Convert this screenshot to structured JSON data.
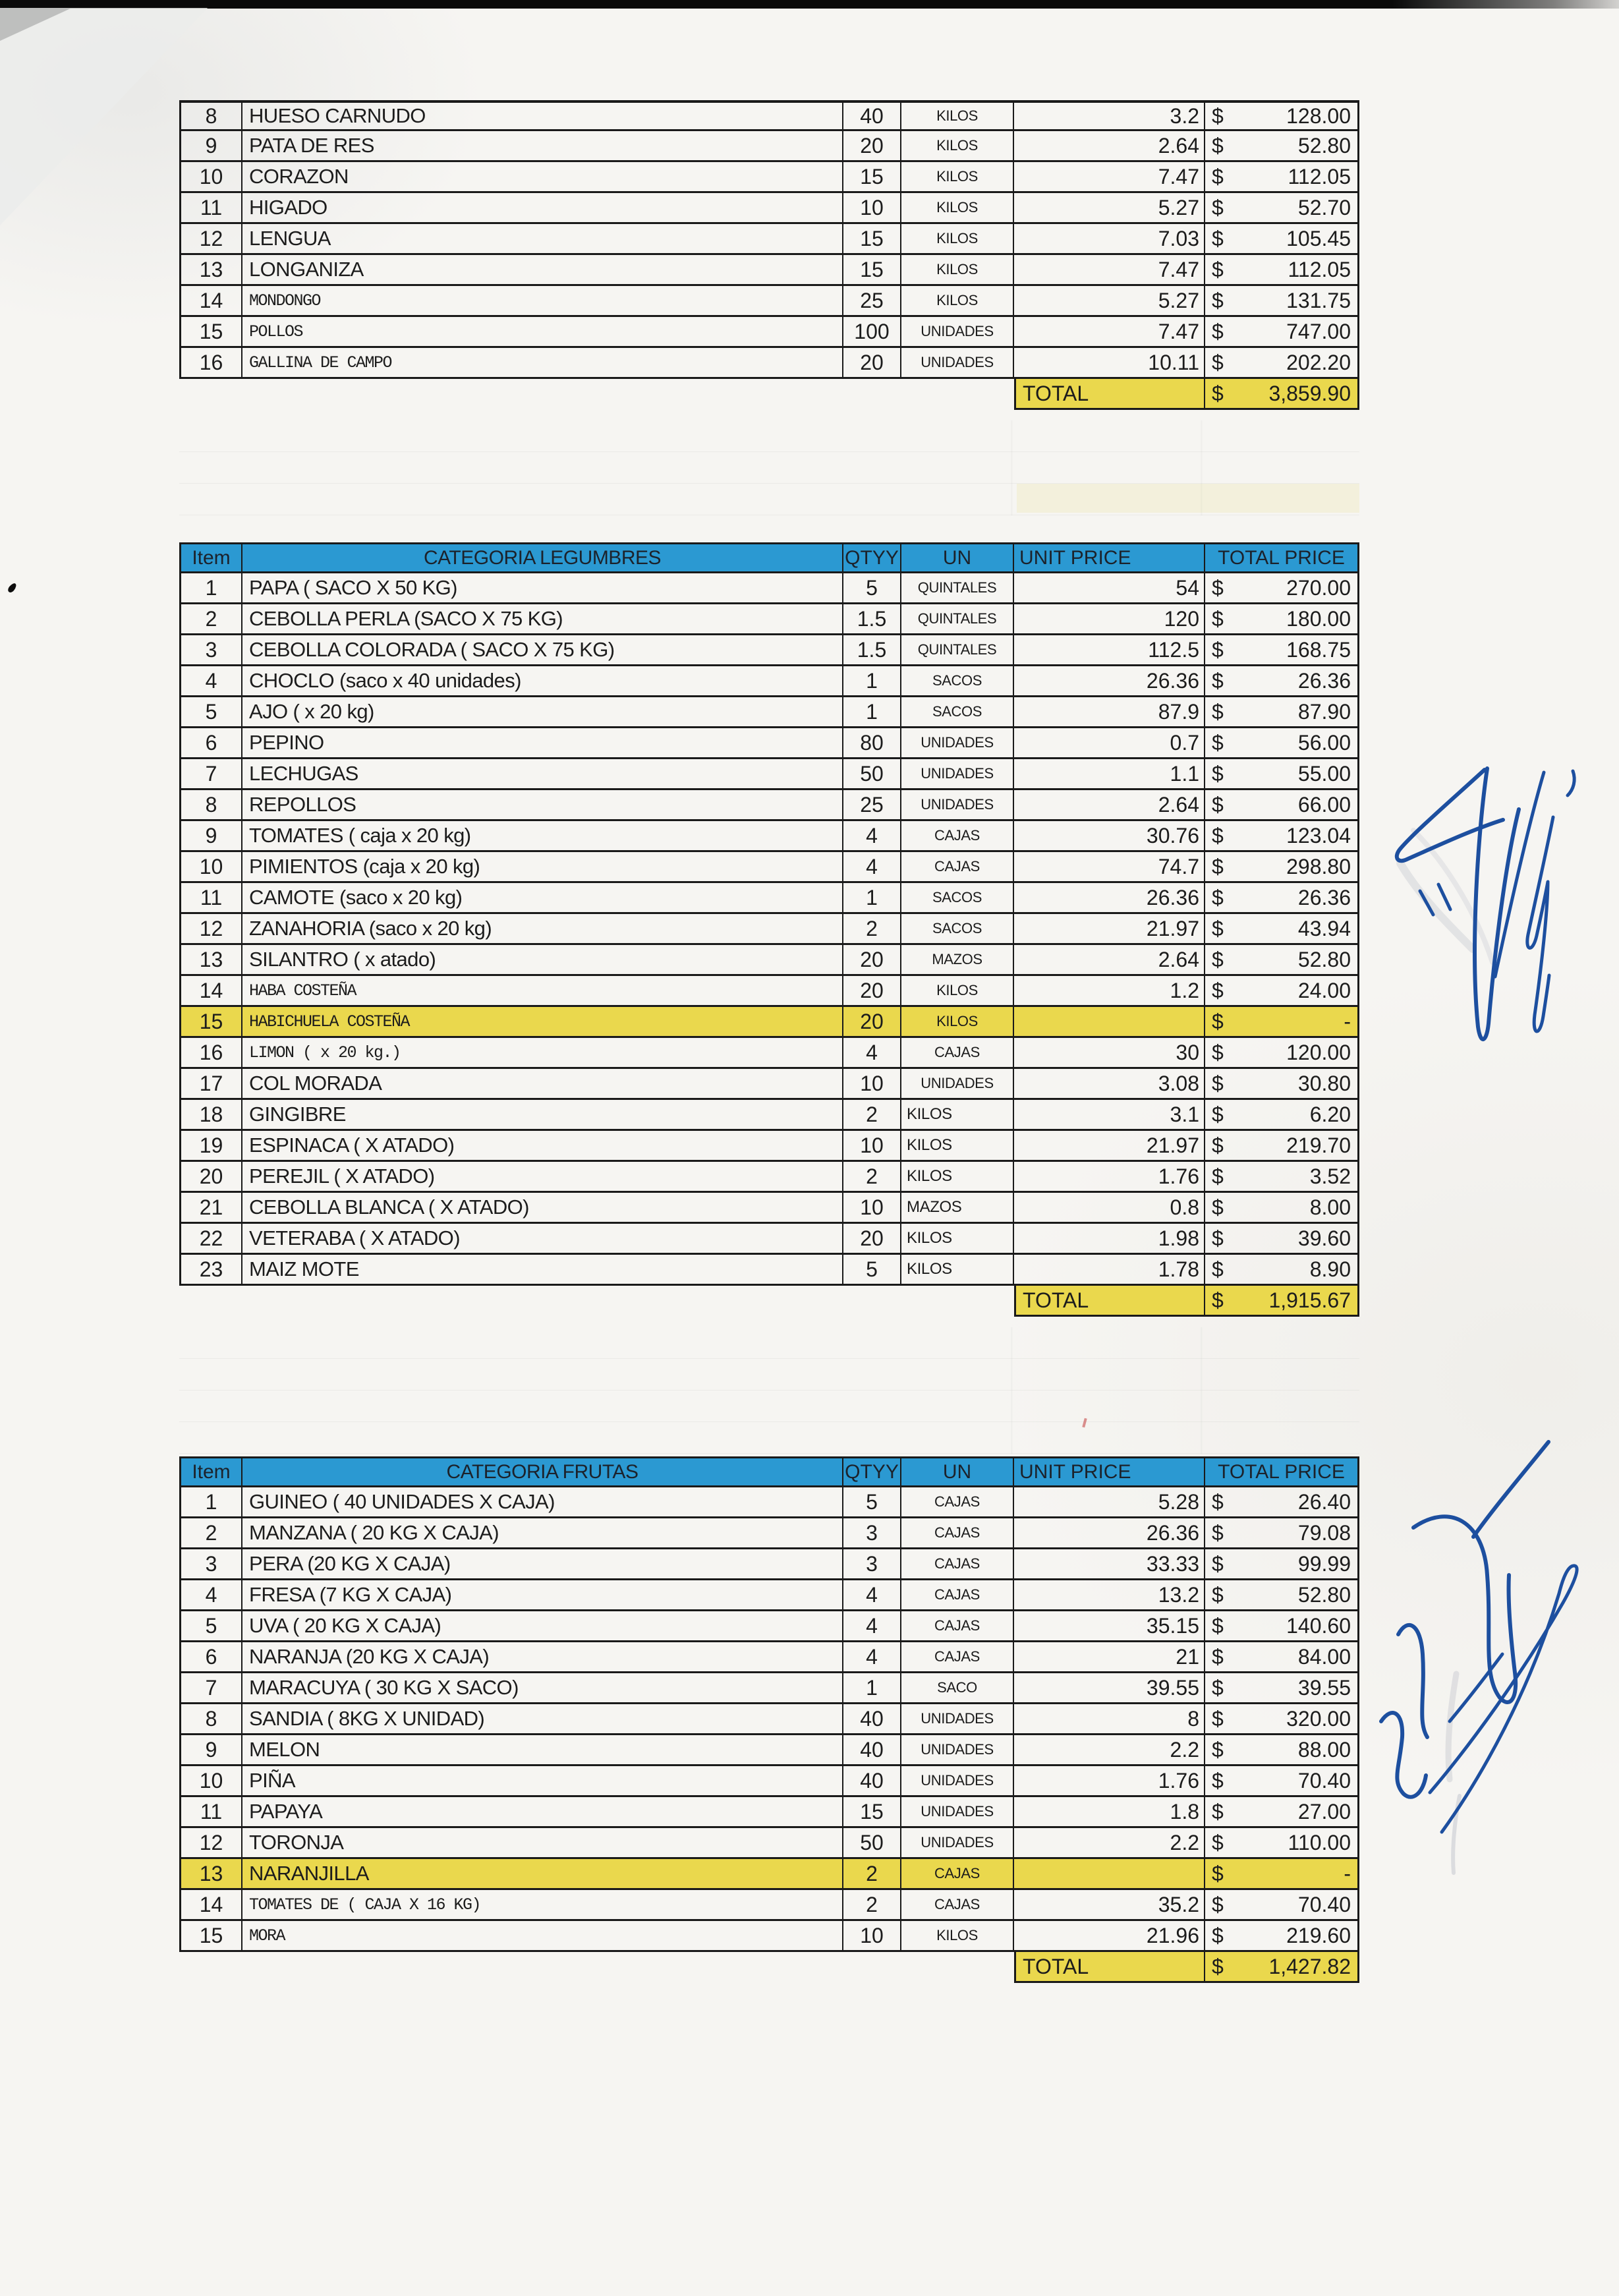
{
  "colors": {
    "header_blue": "#2b99d2",
    "row_yellow": "#ead84d",
    "border": "#1a1a1a",
    "ink": "#1c1c1c",
    "signature_blue": "#1d4f9f",
    "paper": "#f6f5f2"
  },
  "tables": [
    {
      "name": "meat-items-continued",
      "currency": "$",
      "rows": [
        {
          "item": "8",
          "desc": "HUESO CARNUDO",
          "qty": "40",
          "un": "KILOS",
          "unit_price": "3.2",
          "total": "128.00",
          "mono": false,
          "highlight": false,
          "un_left": false
        },
        {
          "item": "9",
          "desc": "PATA DE RES",
          "qty": "20",
          "un": "KILOS",
          "unit_price": "2.64",
          "total": "52.80",
          "mono": false,
          "highlight": false,
          "un_left": false
        },
        {
          "item": "10",
          "desc": "CORAZON",
          "qty": "15",
          "un": "KILOS",
          "unit_price": "7.47",
          "total": "112.05",
          "mono": false,
          "highlight": false,
          "un_left": false
        },
        {
          "item": "11",
          "desc": "HIGADO",
          "qty": "10",
          "un": "KILOS",
          "unit_price": "5.27",
          "total": "52.70",
          "mono": false,
          "highlight": false,
          "un_left": false
        },
        {
          "item": "12",
          "desc": "LENGUA",
          "qty": "15",
          "un": "KILOS",
          "unit_price": "7.03",
          "total": "105.45",
          "mono": false,
          "highlight": false,
          "un_left": false
        },
        {
          "item": "13",
          "desc": "LONGANIZA",
          "qty": "15",
          "un": "KILOS",
          "unit_price": "7.47",
          "total": "112.05",
          "mono": false,
          "highlight": false,
          "un_left": false
        },
        {
          "item": "14",
          "desc": "MONDONGO",
          "qty": "25",
          "un": "KILOS",
          "unit_price": "5.27",
          "total": "131.75",
          "mono": true,
          "highlight": false,
          "un_left": false
        },
        {
          "item": "15",
          "desc": "POLLOS",
          "qty": "100",
          "un": "UNIDADES",
          "unit_price": "7.47",
          "total": "747.00",
          "mono": true,
          "highlight": false,
          "un_left": false
        },
        {
          "item": "16",
          "desc": "GALLINA DE CAMPO",
          "qty": "20",
          "un": "UNIDADES",
          "unit_price": "10.11",
          "total": "202.20",
          "mono": true,
          "highlight": false,
          "un_left": false
        }
      ],
      "total": {
        "label": "TOTAL",
        "value": "3,859.90"
      }
    },
    {
      "name": "legumbres",
      "currency": "$",
      "header": {
        "item": "Item",
        "category": "CATEGORIA LEGUMBRES",
        "qty": "QTYY",
        "un": "UN",
        "unit_price": "UNIT PRICE",
        "total_price": "TOTAL PRICE"
      },
      "rows": [
        {
          "item": "1",
          "desc": "PAPA ( SACO X 50 KG)",
          "qty": "5",
          "un": "QUINTALES",
          "unit_price": "54",
          "total": "270.00",
          "mono": false,
          "highlight": false,
          "un_left": false
        },
        {
          "item": "2",
          "desc": "CEBOLLA PERLA (SACO X 75 KG)",
          "qty": "1.5",
          "un": "QUINTALES",
          "unit_price": "120",
          "total": "180.00",
          "mono": false,
          "highlight": false,
          "un_left": false
        },
        {
          "item": "3",
          "desc": "CEBOLLA COLORADA ( SACO X 75 KG)",
          "qty": "1.5",
          "un": "QUINTALES",
          "unit_price": "112.5",
          "total": "168.75",
          "mono": false,
          "highlight": false,
          "un_left": false
        },
        {
          "item": "4",
          "desc": "CHOCLO (saco x 40 unidades)",
          "qty": "1",
          "un": "SACOS",
          "unit_price": "26.36",
          "total": "26.36",
          "mono": false,
          "highlight": false,
          "un_left": false
        },
        {
          "item": "5",
          "desc": "AJO ( x 20 kg)",
          "qty": "1",
          "un": "SACOS",
          "unit_price": "87.9",
          "total": "87.90",
          "mono": false,
          "highlight": false,
          "un_left": false
        },
        {
          "item": "6",
          "desc": "PEPINO",
          "qty": "80",
          "un": "UNIDADES",
          "unit_price": "0.7",
          "total": "56.00",
          "mono": false,
          "highlight": false,
          "un_left": false
        },
        {
          "item": "7",
          "desc": "LECHUGAS",
          "qty": "50",
          "un": "UNIDADES",
          "unit_price": "1.1",
          "total": "55.00",
          "mono": false,
          "highlight": false,
          "un_left": false
        },
        {
          "item": "8",
          "desc": "REPOLLOS",
          "qty": "25",
          "un": "UNIDADES",
          "unit_price": "2.64",
          "total": "66.00",
          "mono": false,
          "highlight": false,
          "un_left": false
        },
        {
          "item": "9",
          "desc": "TOMATES ( caja x 20 kg)",
          "qty": "4",
          "un": "CAJAS",
          "unit_price": "30.76",
          "total": "123.04",
          "mono": false,
          "highlight": false,
          "un_left": false
        },
        {
          "item": "10",
          "desc": "PIMIENTOS (caja x 20 kg)",
          "qty": "4",
          "un": "CAJAS",
          "unit_price": "74.7",
          "total": "298.80",
          "mono": false,
          "highlight": false,
          "un_left": false
        },
        {
          "item": "11",
          "desc": "CAMOTE (saco x 20 kg)",
          "qty": "1",
          "un": "SACOS",
          "unit_price": "26.36",
          "total": "26.36",
          "mono": false,
          "highlight": false,
          "un_left": false
        },
        {
          "item": "12",
          "desc": "ZANAHORIA (saco x 20 kg)",
          "qty": "2",
          "un": "SACOS",
          "unit_price": "21.97",
          "total": "43.94",
          "mono": false,
          "highlight": false,
          "un_left": false
        },
        {
          "item": "13",
          "desc": "SILANTRO ( x atado)",
          "qty": "20",
          "un": "MAZOS",
          "unit_price": "2.64",
          "total": "52.80",
          "mono": false,
          "highlight": false,
          "un_left": false
        },
        {
          "item": "14",
          "desc": "HABA COSTEÑA",
          "qty": "20",
          "un": "KILOS",
          "unit_price": "1.2",
          "total": "24.00",
          "mono": true,
          "highlight": false,
          "un_left": false
        },
        {
          "item": "15",
          "desc": "HABICHUELA COSTEÑA",
          "qty": "20",
          "un": "KILOS",
          "unit_price": "",
          "total": "-",
          "mono": true,
          "highlight": true,
          "un_left": false
        },
        {
          "item": "16",
          "desc": "LIMON ( x 20 kg.)",
          "qty": "4",
          "un": "CAJAS",
          "unit_price": "30",
          "total": "120.00",
          "mono": true,
          "highlight": false,
          "un_left": false
        },
        {
          "item": "17",
          "desc": "COL MORADA",
          "qty": "10",
          "un": "UNIDADES",
          "unit_price": "3.08",
          "total": "30.80",
          "mono": false,
          "highlight": false,
          "un_left": false
        },
        {
          "item": "18",
          "desc": "GINGIBRE",
          "qty": "2",
          "un": "KILOS",
          "unit_price": "3.1",
          "total": "6.20",
          "mono": false,
          "highlight": false,
          "un_left": true
        },
        {
          "item": "19",
          "desc": "ESPINACA ( X ATADO)",
          "qty": "10",
          "un": "KILOS",
          "unit_price": "21.97",
          "total": "219.70",
          "mono": false,
          "highlight": false,
          "un_left": true
        },
        {
          "item": "20",
          "desc": "PEREJIL ( X ATADO)",
          "qty": "2",
          "un": "KILOS",
          "unit_price": "1.76",
          "total": "3.52",
          "mono": false,
          "highlight": false,
          "un_left": true
        },
        {
          "item": "21",
          "desc": "CEBOLLA BLANCA ( X ATADO)",
          "qty": "10",
          "un": "MAZOS",
          "unit_price": "0.8",
          "total": "8.00",
          "mono": false,
          "highlight": false,
          "un_left": true
        },
        {
          "item": "22",
          "desc": "VETERABA ( X ATADO)",
          "qty": "20",
          "un": "KILOS",
          "unit_price": "1.98",
          "total": "39.60",
          "mono": false,
          "highlight": false,
          "un_left": true
        },
        {
          "item": "23",
          "desc": "MAIZ MOTE",
          "qty": "5",
          "un": "KILOS",
          "unit_price": "1.78",
          "total": "8.90",
          "mono": false,
          "highlight": false,
          "un_left": true
        }
      ],
      "total": {
        "label": "TOTAL",
        "value": "1,915.67"
      }
    },
    {
      "name": "frutas",
      "currency": "$",
      "header": {
        "item": "Item",
        "category": "CATEGORIA FRUTAS",
        "qty": "QTYY",
        "un": "UN",
        "unit_price": "UNIT PRICE",
        "total_price": "TOTAL PRICE"
      },
      "rows": [
        {
          "item": "1",
          "desc": "GUINEO ( 40 UNIDADES X CAJA)",
          "qty": "5",
          "un": "CAJAS",
          "unit_price": "5.28",
          "total": "26.40",
          "mono": false,
          "highlight": false,
          "un_left": false
        },
        {
          "item": "2",
          "desc": "MANZANA ( 20 KG X CAJA)",
          "qty": "3",
          "un": "CAJAS",
          "unit_price": "26.36",
          "total": "79.08",
          "mono": false,
          "highlight": false,
          "un_left": false
        },
        {
          "item": "3",
          "desc": "PERA (20 KG X CAJA)",
          "qty": "3",
          "un": "CAJAS",
          "unit_price": "33.33",
          "total": "99.99",
          "mono": false,
          "highlight": false,
          "un_left": false
        },
        {
          "item": "4",
          "desc": "FRESA (7 KG X CAJA)",
          "qty": "4",
          "un": "CAJAS",
          "unit_price": "13.2",
          "total": "52.80",
          "mono": false,
          "highlight": false,
          "un_left": false
        },
        {
          "item": "5",
          "desc": "UVA ( 20 KG X CAJA)",
          "qty": "4",
          "un": "CAJAS",
          "unit_price": "35.15",
          "total": "140.60",
          "mono": false,
          "highlight": false,
          "un_left": false
        },
        {
          "item": "6",
          "desc": "NARANJA (20 KG X CAJA)",
          "qty": "4",
          "un": "CAJAS",
          "unit_price": "21",
          "total": "84.00",
          "mono": false,
          "highlight": false,
          "un_left": false
        },
        {
          "item": "7",
          "desc": "MARACUYA ( 30 KG X SACO)",
          "qty": "1",
          "un": "SACO",
          "unit_price": "39.55",
          "total": "39.55",
          "mono": false,
          "highlight": false,
          "un_left": false
        },
        {
          "item": "8",
          "desc": "SANDIA ( 8KG X UNIDAD)",
          "qty": "40",
          "un": "UNIDADES",
          "unit_price": "8",
          "total": "320.00",
          "mono": false,
          "highlight": false,
          "un_left": false
        },
        {
          "item": "9",
          "desc": "MELON",
          "qty": "40",
          "un": "UNIDADES",
          "unit_price": "2.2",
          "total": "88.00",
          "mono": false,
          "highlight": false,
          "un_left": false
        },
        {
          "item": "10",
          "desc": "PIÑA",
          "qty": "40",
          "un": "UNIDADES",
          "unit_price": "1.76",
          "total": "70.40",
          "mono": false,
          "highlight": false,
          "un_left": false
        },
        {
          "item": "11",
          "desc": "PAPAYA",
          "qty": "15",
          "un": "UNIDADES",
          "unit_price": "1.8",
          "total": "27.00",
          "mono": false,
          "highlight": false,
          "un_left": false
        },
        {
          "item": "12",
          "desc": "TORONJA",
          "qty": "50",
          "un": "UNIDADES",
          "unit_price": "2.2",
          "total": "110.00",
          "mono": false,
          "highlight": false,
          "un_left": false
        },
        {
          "item": "13",
          "desc": "NARANJILLA",
          "qty": "2",
          "un": "CAJAS",
          "unit_price": "",
          "total": "-",
          "mono": false,
          "highlight": true,
          "un_left": false
        },
        {
          "item": "14",
          "desc": "TOMATES DE ( CAJA X 16 KG)",
          "qty": "2",
          "un": "CAJAS",
          "unit_price": "35.2",
          "total": "70.40",
          "mono": true,
          "highlight": false,
          "un_left": false
        },
        {
          "item": "15",
          "desc": "MORA",
          "qty": "10",
          "un": "KILOS",
          "unit_price": "21.96",
          "total": "219.60",
          "mono": true,
          "highlight": false,
          "un_left": false
        }
      ],
      "total": {
        "label": "TOTAL",
        "value": "1,427.82"
      }
    }
  ]
}
